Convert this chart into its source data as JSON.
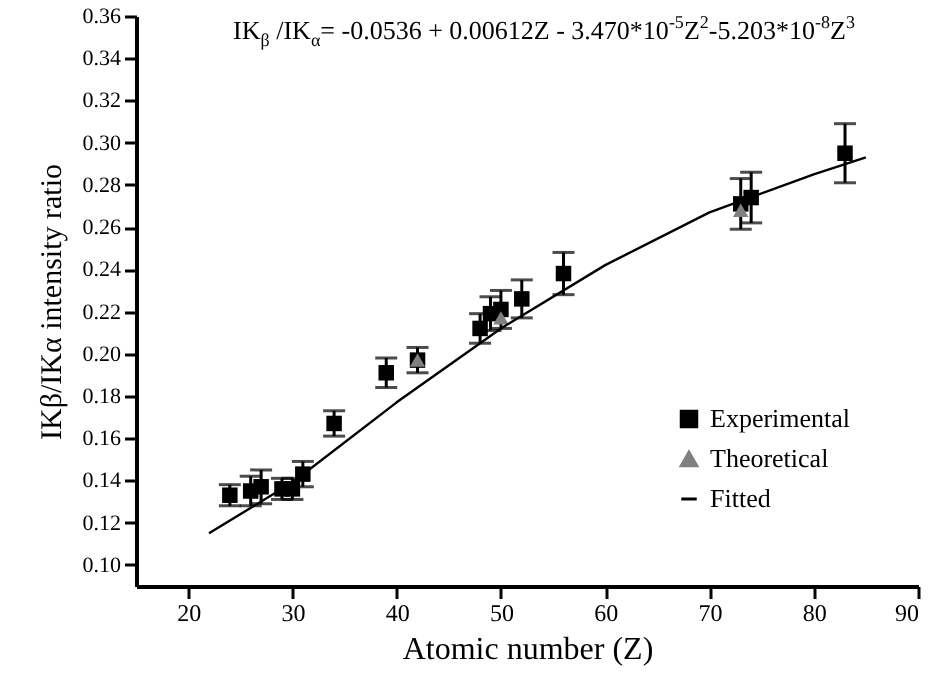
{
  "chart_data": {
    "type": "scatter",
    "xlabel": "Atomic number (Z)",
    "ylabel": "IKβ/IKα intensity ratio",
    "annotations": [
      "IK$_{β}$ /IK$_{α}$= -0.0536 + 0.00612Z - 3.470*10$^{-5}$Z$^{2}$-5.203*10$^{-8}$Z$^{3}$"
    ],
    "xlim": [
      15,
      90
    ],
    "xticks": [
      20,
      30,
      40,
      50,
      60,
      70,
      80,
      90
    ],
    "ylim": [
      0.09,
      0.36
    ],
    "yticks": [
      {
        "value": 0.1,
        "label": "0.10"
      },
      {
        "value": 0.12,
        "label": "0.12"
      },
      {
        "value": 0.14,
        "label": "0.14"
      },
      {
        "value": 0.16,
        "label": "0.16"
      },
      {
        "value": 0.18,
        "label": "0.18"
      },
      {
        "value": 0.2,
        "label": "0.20"
      },
      {
        "value": 0.22,
        "label": "0.22"
      },
      {
        "value": 0.24,
        "label": "0.24"
      },
      {
        "value": 0.26,
        "label": "0.26"
      },
      {
        "value": 0.28,
        "label": "0.28"
      },
      {
        "value": 0.3,
        "label": "0.30"
      },
      {
        "value": 0.32,
        "label": "0.32"
      },
      {
        "value": 0.34,
        "label": "0.34"
      },
      {
        "value": 0.36,
        "label": "0.36"
      }
    ],
    "legend": "bottom right",
    "series": [
      {
        "name": "Experimental",
        "type": "scatter",
        "marker": "square",
        "color": "#000000",
        "x": [
          24,
          26,
          27,
          29,
          30,
          31,
          34,
          39,
          42,
          48,
          49,
          50,
          52,
          56,
          73,
          74,
          83
        ],
        "values": [
          0.133,
          0.135,
          0.137,
          0.136,
          0.136,
          0.143,
          0.167,
          0.191,
          0.197,
          0.212,
          0.219,
          0.221,
          0.226,
          0.238,
          0.271,
          0.274,
          0.295
        ],
        "errors": [
          0.005,
          0.007,
          0.008,
          0.005,
          0.005,
          0.006,
          0.006,
          0.007,
          0.006,
          0.007,
          0.008,
          0.009,
          0.009,
          0.01,
          0.012,
          0.012,
          0.014
        ]
      },
      {
        "name": "Theoretical",
        "type": "scatter",
        "marker": "triangle",
        "color": "#808080",
        "x": [
          42,
          50,
          73
        ],
        "values": [
          0.197,
          0.217,
          0.268
        ]
      },
      {
        "name": "Fitted",
        "type": "line",
        "color": "#000000",
        "x": [
          22,
          30,
          40,
          50,
          60,
          70,
          80,
          85
        ],
        "values": [
          0.115,
          0.139,
          0.177,
          0.212,
          0.242,
          0.267,
          0.285,
          0.293
        ]
      }
    ]
  }
}
